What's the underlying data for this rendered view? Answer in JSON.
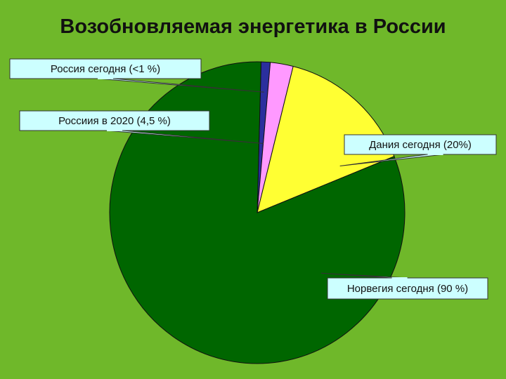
{
  "chart_data": {
    "type": "pie",
    "title": "Возобновляемая энергетика в России",
    "slices": [
      {
        "label": "Россия сегодня (<1 %)",
        "value": 1,
        "color": "#2b2f9e"
      },
      {
        "label": "Россиия в 2020 (4,5 %)",
        "value": 2.5,
        "color": "#ff99ff"
      },
      {
        "label": "Дания сегодня (20%)",
        "value": 15,
        "color": "#ffff33"
      },
      {
        "label": "Норвегия сегодня (90 %)",
        "value": 81.5,
        "color": "#006600"
      }
    ],
    "legend": "callouts",
    "colors": {
      "background": "#6fb82a",
      "callout_fill": "#ccffff"
    }
  }
}
